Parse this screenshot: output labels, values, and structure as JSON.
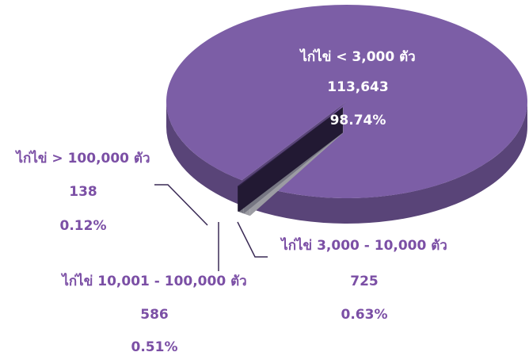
{
  "chart_data": {
    "type": "pie",
    "categories": [
      "ไก่ไข่ 3,000 - 10,000 ตัว",
      "ไก่ไข่ 10,001 - 100,000 ตัว",
      "ไก่ไข่ > 100,000 ตัว",
      "ไก่ไข่ < 3,000 ตัว"
    ],
    "values": [
      0.63,
      0.51,
      0.12,
      98.74
    ],
    "value_labels": [
      "0.63%",
      "0.51%",
      "0.12%",
      "98.74%"
    ],
    "counts": [
      725,
      586,
      138,
      113643
    ],
    "count_labels": [
      "725",
      "586",
      "138",
      "113,643"
    ],
    "colors": [
      "#d9d9e2",
      "#a4a4b4",
      "#2f2347",
      "#7c5ea6"
    ]
  }
}
